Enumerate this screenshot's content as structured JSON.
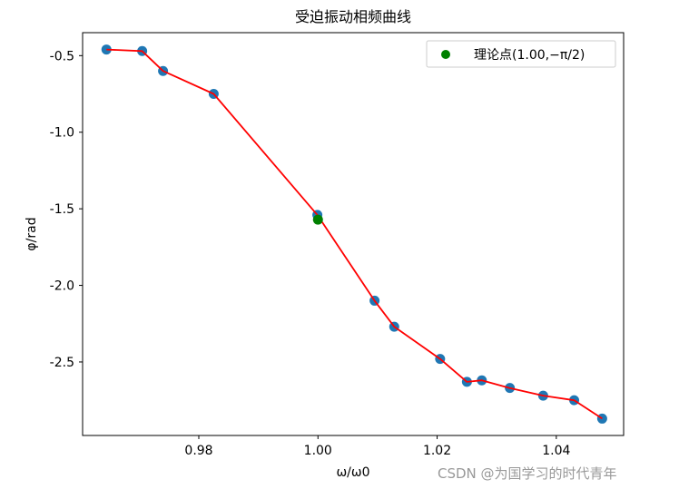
{
  "chart_data": {
    "type": "scatter",
    "title": "受迫振动相频曲线",
    "xlabel": "ω/ω0",
    "ylabel": "φ/rad",
    "xlim": [
      0.9605,
      1.0513
    ],
    "ylim": [
      -2.98,
      -0.35
    ],
    "xticks": [
      0.98,
      1.0,
      1.02,
      1.04
    ],
    "xtick_labels": [
      "0.98",
      "1.00",
      "1.02",
      "1.04"
    ],
    "yticks": [
      -0.5,
      -1.0,
      -1.5,
      -2.0,
      -2.5
    ],
    "ytick_labels": [
      "-0.5",
      "-1.0",
      "-1.5",
      "-2.0",
      "-2.5"
    ],
    "grid": false,
    "legend_position": "top-right",
    "colors": {
      "measured": "#1f77b4",
      "fit_line": "#ff0000",
      "theory": "#008000"
    },
    "series": [
      {
        "kind": "scatter",
        "x": [
          0.9645,
          0.9705,
          0.974,
          0.9825,
          0.9999,
          1.0095,
          1.0128,
          1.0205,
          1.025,
          1.0275,
          1.0322,
          1.0378,
          1.043,
          1.0477
        ],
        "y": [
          -0.46,
          -0.47,
          -0.6,
          -0.75,
          -1.54,
          -2.1,
          -2.27,
          -2.48,
          -2.63,
          -2.62,
          -2.67,
          -2.72,
          -2.75,
          -2.87
        ]
      },
      {
        "kind": "line",
        "x": [
          0.9645,
          0.9705,
          0.974,
          0.9825,
          0.9999,
          1.0095,
          1.0128,
          1.0205,
          1.025,
          1.0275,
          1.0322,
          1.0378,
          1.043,
          1.0477
        ],
        "y": [
          -0.46,
          -0.47,
          -0.6,
          -0.75,
          -1.54,
          -2.1,
          -2.27,
          -2.48,
          -2.63,
          -2.62,
          -2.67,
          -2.72,
          -2.75,
          -2.87
        ]
      },
      {
        "kind": "scatter",
        "name": "理论点(1.00,−π/2)",
        "x": [
          1.0
        ],
        "y": [
          -1.5708
        ]
      }
    ]
  },
  "watermark": "CSDN @为国学习的时代青年"
}
